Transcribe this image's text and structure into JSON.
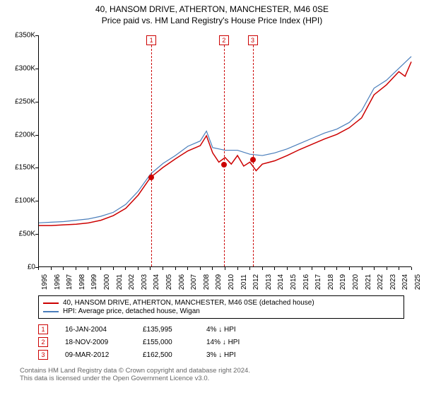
{
  "title": {
    "line1": "40, HANSOM DRIVE, ATHERTON, MANCHESTER, M46 0SE",
    "line2": "Price paid vs. HM Land Registry's House Price Index (HPI)"
  },
  "chart": {
    "type": "line",
    "background_color": "#ffffff",
    "axis_color": "#000000",
    "ylim": [
      0,
      350000
    ],
    "ytick_step": 50000,
    "ytick_labels": [
      "£0",
      "£50K",
      "£100K",
      "£150K",
      "£200K",
      "£250K",
      "£300K",
      "£350K"
    ],
    "xlim": [
      1995,
      2025
    ],
    "xtick_step": 1,
    "xtick_labels": [
      "1995",
      "1996",
      "1997",
      "1998",
      "1999",
      "2000",
      "2001",
      "2002",
      "2003",
      "2004",
      "2005",
      "2006",
      "2007",
      "2008",
      "2009",
      "2010",
      "2011",
      "2012",
      "2013",
      "2014",
      "2015",
      "2016",
      "2017",
      "2018",
      "2019",
      "2020",
      "2021",
      "2022",
      "2023",
      "2024",
      "2025"
    ],
    "series": [
      {
        "name": "price_paid",
        "label": "40, HANSOM DRIVE, ATHERTON, MANCHESTER, M46 0SE (detached house)",
        "color": "#cc0000",
        "line_width": 1.5,
        "x": [
          1995,
          1996,
          1997,
          1998,
          1999,
          2000,
          2001,
          2002,
          2003,
          2004,
          2005,
          2006,
          2007,
          2008,
          2008.5,
          2009,
          2009.5,
          2010,
          2010.5,
          2011,
          2011.5,
          2012,
          2012.5,
          2013,
          2014,
          2015,
          2016,
          2017,
          2018,
          2019,
          2020,
          2021,
          2022,
          2023,
          2024,
          2024.5,
          2025
        ],
        "y": [
          62000,
          62000,
          63000,
          64000,
          66000,
          70000,
          77000,
          88000,
          108000,
          135000,
          150000,
          163000,
          175000,
          183000,
          198000,
          172000,
          158000,
          165000,
          155000,
          168000,
          152000,
          158000,
          145000,
          155000,
          160000,
          168000,
          177000,
          185000,
          193000,
          200000,
          210000,
          225000,
          260000,
          275000,
          295000,
          288000,
          310000
        ]
      },
      {
        "name": "hpi",
        "label": "HPI: Average price, detached house, Wigan",
        "color": "#4a7ebb",
        "line_width": 1.2,
        "x": [
          1995,
          1996,
          1997,
          1998,
          1999,
          2000,
          2001,
          2002,
          2003,
          2004,
          2005,
          2006,
          2007,
          2008,
          2008.5,
          2009,
          2010,
          2011,
          2012,
          2013,
          2014,
          2015,
          2016,
          2017,
          2018,
          2019,
          2020,
          2021,
          2022,
          2023,
          2024,
          2025
        ],
        "y": [
          66000,
          67000,
          68000,
          70000,
          72000,
          76000,
          82000,
          94000,
          114000,
          140000,
          156000,
          168000,
          182000,
          190000,
          205000,
          180000,
          176000,
          176000,
          170000,
          168000,
          172000,
          178000,
          186000,
          194000,
          202000,
          208000,
          218000,
          236000,
          270000,
          282000,
          300000,
          318000
        ]
      }
    ],
    "markers": [
      {
        "id": "1",
        "x": 2004.04,
        "y": 135995,
        "dot_color": "#cc0000"
      },
      {
        "id": "2",
        "x": 2009.88,
        "y": 155000,
        "dot_color": "#cc0000"
      },
      {
        "id": "3",
        "x": 2012.19,
        "y": 162500,
        "dot_color": "#cc0000"
      }
    ],
    "marker_box_border": "#cc0000",
    "marker_line_style": "dashed"
  },
  "legend": {
    "items": [
      {
        "color": "#cc0000",
        "label": "40, HANSOM DRIVE, ATHERTON, MANCHESTER, M46 0SE (detached house)"
      },
      {
        "color": "#4a7ebb",
        "label": "HPI: Average price, detached house, Wigan"
      }
    ]
  },
  "transactions": [
    {
      "id": "1",
      "date": "16-JAN-2004",
      "price": "£135,995",
      "delta": "4% ↓ HPI"
    },
    {
      "id": "2",
      "date": "18-NOV-2009",
      "price": "£155,000",
      "delta": "14% ↓ HPI"
    },
    {
      "id": "3",
      "date": "09-MAR-2012",
      "price": "£162,500",
      "delta": "3% ↓ HPI"
    }
  ],
  "footer": {
    "line1": "Contains HM Land Registry data © Crown copyright and database right 2024.",
    "line2": "This data is licensed under the Open Government Licence v3.0."
  },
  "colors": {
    "footer_text": "#666666",
    "marker_red": "#cc0000"
  }
}
